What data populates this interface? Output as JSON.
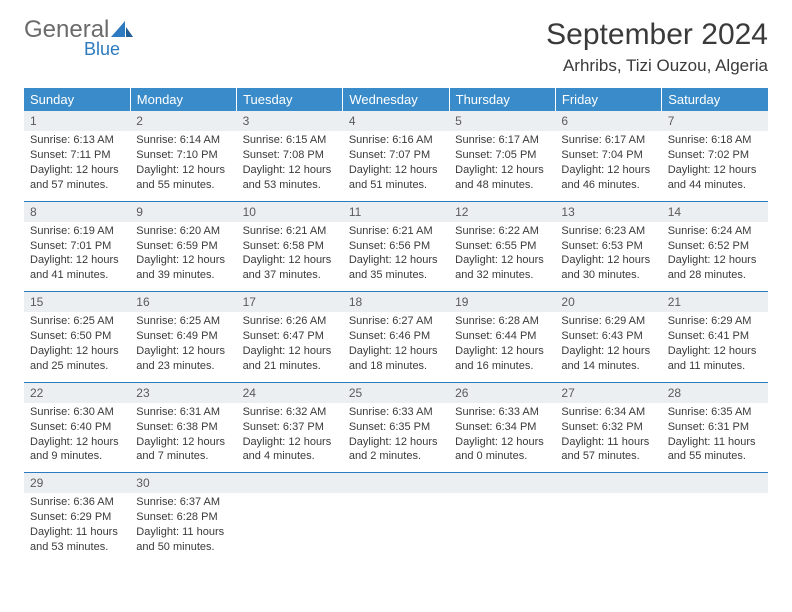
{
  "logo": {
    "word1": "General",
    "word2": "Blue"
  },
  "title": "September 2024",
  "location": "Arhribs, Tizi Ouzou, Algeria",
  "colors": {
    "header_bg": "#3a8bc9",
    "header_text": "#ffffff",
    "rule": "#2c7ac0",
    "daynum_bg": "#eceff1",
    "logo_gray": "#6b6b6b",
    "logo_blue": "#2c7ac0",
    "text": "#3a3a3a"
  },
  "weekdays": [
    "Sunday",
    "Monday",
    "Tuesday",
    "Wednesday",
    "Thursday",
    "Friday",
    "Saturday"
  ],
  "weeks": [
    [
      {
        "n": "1",
        "sr": "6:13 AM",
        "ss": "7:11 PM",
        "dl": "12 hours and 57 minutes."
      },
      {
        "n": "2",
        "sr": "6:14 AM",
        "ss": "7:10 PM",
        "dl": "12 hours and 55 minutes."
      },
      {
        "n": "3",
        "sr": "6:15 AM",
        "ss": "7:08 PM",
        "dl": "12 hours and 53 minutes."
      },
      {
        "n": "4",
        "sr": "6:16 AM",
        "ss": "7:07 PM",
        "dl": "12 hours and 51 minutes."
      },
      {
        "n": "5",
        "sr": "6:17 AM",
        "ss": "7:05 PM",
        "dl": "12 hours and 48 minutes."
      },
      {
        "n": "6",
        "sr": "6:17 AM",
        "ss": "7:04 PM",
        "dl": "12 hours and 46 minutes."
      },
      {
        "n": "7",
        "sr": "6:18 AM",
        "ss": "7:02 PM",
        "dl": "12 hours and 44 minutes."
      }
    ],
    [
      {
        "n": "8",
        "sr": "6:19 AM",
        "ss": "7:01 PM",
        "dl": "12 hours and 41 minutes."
      },
      {
        "n": "9",
        "sr": "6:20 AM",
        "ss": "6:59 PM",
        "dl": "12 hours and 39 minutes."
      },
      {
        "n": "10",
        "sr": "6:21 AM",
        "ss": "6:58 PM",
        "dl": "12 hours and 37 minutes."
      },
      {
        "n": "11",
        "sr": "6:21 AM",
        "ss": "6:56 PM",
        "dl": "12 hours and 35 minutes."
      },
      {
        "n": "12",
        "sr": "6:22 AM",
        "ss": "6:55 PM",
        "dl": "12 hours and 32 minutes."
      },
      {
        "n": "13",
        "sr": "6:23 AM",
        "ss": "6:53 PM",
        "dl": "12 hours and 30 minutes."
      },
      {
        "n": "14",
        "sr": "6:24 AM",
        "ss": "6:52 PM",
        "dl": "12 hours and 28 minutes."
      }
    ],
    [
      {
        "n": "15",
        "sr": "6:25 AM",
        "ss": "6:50 PM",
        "dl": "12 hours and 25 minutes."
      },
      {
        "n": "16",
        "sr": "6:25 AM",
        "ss": "6:49 PM",
        "dl": "12 hours and 23 minutes."
      },
      {
        "n": "17",
        "sr": "6:26 AM",
        "ss": "6:47 PM",
        "dl": "12 hours and 21 minutes."
      },
      {
        "n": "18",
        "sr": "6:27 AM",
        "ss": "6:46 PM",
        "dl": "12 hours and 18 minutes."
      },
      {
        "n": "19",
        "sr": "6:28 AM",
        "ss": "6:44 PM",
        "dl": "12 hours and 16 minutes."
      },
      {
        "n": "20",
        "sr": "6:29 AM",
        "ss": "6:43 PM",
        "dl": "12 hours and 14 minutes."
      },
      {
        "n": "21",
        "sr": "6:29 AM",
        "ss": "6:41 PM",
        "dl": "12 hours and 11 minutes."
      }
    ],
    [
      {
        "n": "22",
        "sr": "6:30 AM",
        "ss": "6:40 PM",
        "dl": "12 hours and 9 minutes."
      },
      {
        "n": "23",
        "sr": "6:31 AM",
        "ss": "6:38 PM",
        "dl": "12 hours and 7 minutes."
      },
      {
        "n": "24",
        "sr": "6:32 AM",
        "ss": "6:37 PM",
        "dl": "12 hours and 4 minutes."
      },
      {
        "n": "25",
        "sr": "6:33 AM",
        "ss": "6:35 PM",
        "dl": "12 hours and 2 minutes."
      },
      {
        "n": "26",
        "sr": "6:33 AM",
        "ss": "6:34 PM",
        "dl": "12 hours and 0 minutes."
      },
      {
        "n": "27",
        "sr": "6:34 AM",
        "ss": "6:32 PM",
        "dl": "11 hours and 57 minutes."
      },
      {
        "n": "28",
        "sr": "6:35 AM",
        "ss": "6:31 PM",
        "dl": "11 hours and 55 minutes."
      }
    ],
    [
      {
        "n": "29",
        "sr": "6:36 AM",
        "ss": "6:29 PM",
        "dl": "11 hours and 53 minutes."
      },
      {
        "n": "30",
        "sr": "6:37 AM",
        "ss": "6:28 PM",
        "dl": "11 hours and 50 minutes."
      },
      null,
      null,
      null,
      null,
      null
    ]
  ],
  "labels": {
    "sunrise": "Sunrise: ",
    "sunset": "Sunset: ",
    "daylight": "Daylight: "
  }
}
